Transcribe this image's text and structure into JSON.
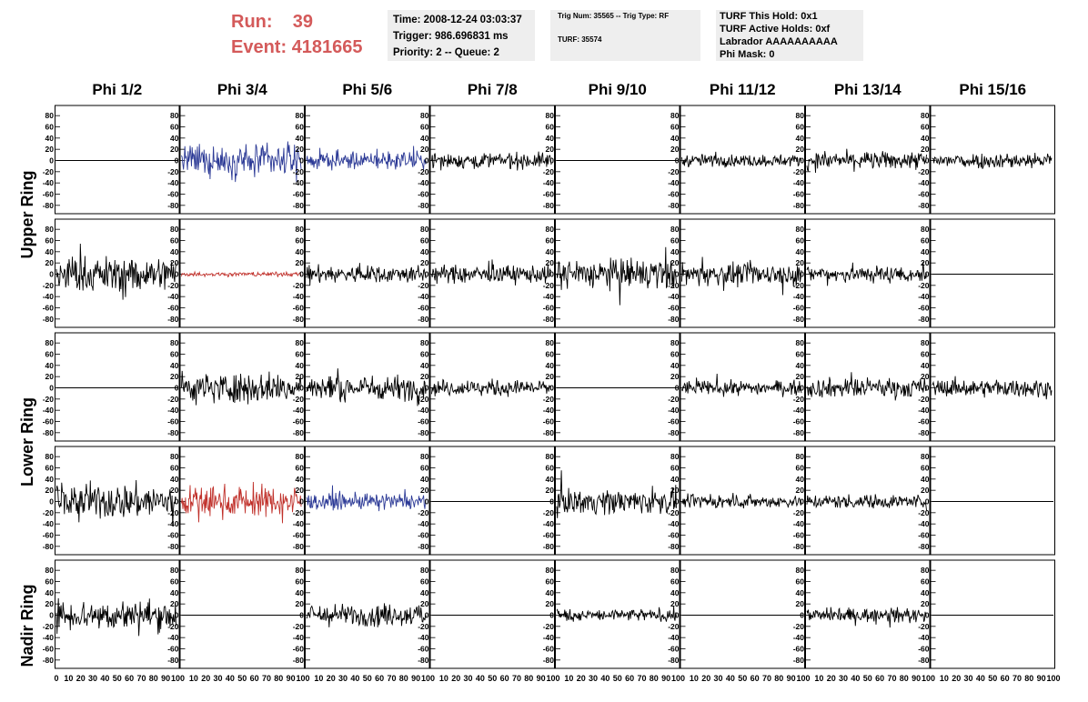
{
  "header": {
    "run_label": "Run:",
    "run_value": "39",
    "event_label": "Event:",
    "event_value": "4181665",
    "time_line": "Time: 2008-12-24 03:03:37",
    "trigger_line": "Trigger: 986.696831 ms",
    "priority_line": "Priority: 2 -- Queue: 2",
    "trig_line": "Trig Num: 35565 -- Trig Type: RF",
    "turf_line": "TURF: 35574",
    "turf_hold": "TURF This Hold: 0x1",
    "turf_active": "TURF Active Holds: 0xf",
    "labrador": "Labrador AAAAAAAAAA",
    "phi_mask": "Phi Mask: 0"
  },
  "colors": {
    "highlight_text": "#d45a5a",
    "trace_black": "#000000",
    "trace_blue": "#2c3a96",
    "trace_red": "#c0302a",
    "box_bg": "#eeeeee"
  },
  "chart_data": {
    "type": "line",
    "columns": [
      "Phi 1/2",
      "Phi 3/4",
      "Phi 5/6",
      "Phi 7/8",
      "Phi 9/10",
      "Phi 11/12",
      "Phi 13/14",
      "Phi 15/16"
    ],
    "row_labels": [
      "Upper Ring",
      "Lower Ring",
      "Nadir Ring"
    ],
    "y_ticks": [
      80,
      60,
      40,
      20,
      0,
      -20,
      -40,
      -60,
      -80
    ],
    "x_ticks": [
      0,
      10,
      20,
      30,
      40,
      50,
      60,
      70,
      80,
      90,
      100
    ],
    "ylim": [
      -90,
      90
    ],
    "xlim": [
      0,
      100
    ],
    "panels": [
      [
        {
          "color": "flat",
          "amp": 0
        },
        {
          "color": "blue",
          "amp": 35
        },
        {
          "color": "blue",
          "amp": 20
        },
        {
          "color": "black",
          "amp": 18
        },
        {
          "color": "flat",
          "amp": 0
        },
        {
          "color": "black",
          "amp": 14
        },
        {
          "color": "black",
          "amp": 20
        },
        {
          "color": "black",
          "amp": 18
        }
      ],
      [
        {
          "color": "black",
          "amp": 40
        },
        {
          "color": "red",
          "amp": 5
        },
        {
          "color": "black",
          "amp": 20
        },
        {
          "color": "black",
          "amp": 20
        },
        {
          "color": "black",
          "amp": 35
        },
        {
          "color": "black",
          "amp": 25
        },
        {
          "color": "black",
          "amp": 20
        },
        {
          "color": "flat",
          "amp": 0
        }
      ],
      [
        {
          "color": "flat",
          "amp": 0
        },
        {
          "color": "black",
          "amp": 35
        },
        {
          "color": "black",
          "amp": 28
        },
        {
          "color": "black",
          "amp": 18
        },
        {
          "color": "flat",
          "amp": 0
        },
        {
          "color": "black",
          "amp": 16
        },
        {
          "color": "black",
          "amp": 22
        },
        {
          "color": "black",
          "amp": 20
        }
      ],
      [
        {
          "color": "black",
          "amp": 40
        },
        {
          "color": "red",
          "amp": 35
        },
        {
          "color": "blue",
          "amp": 18
        },
        {
          "color": "flat",
          "amp": 0
        },
        {
          "color": "black",
          "amp": 28
        },
        {
          "color": "black",
          "amp": 14
        },
        {
          "color": "black",
          "amp": 16
        },
        {
          "color": "flat",
          "amp": 0
        }
      ],
      [
        {
          "color": "black",
          "amp": 35
        },
        {
          "color": "flat",
          "amp": 0
        },
        {
          "color": "black",
          "amp": 25
        },
        {
          "color": "flat",
          "amp": 0
        },
        {
          "color": "black",
          "amp": 14
        },
        {
          "color": "flat",
          "amp": 0
        },
        {
          "color": "black",
          "amp": 16
        },
        {
          "color": "flat",
          "amp": 0
        }
      ]
    ]
  }
}
